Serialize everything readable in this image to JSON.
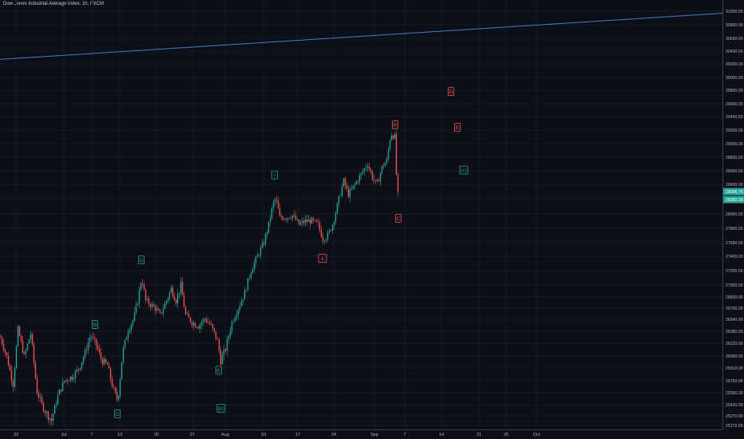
{
  "header": {
    "title": "Dow Jones Industrial Average Index, 1h, FXCM"
  },
  "colors": {
    "background": "#0c0f17",
    "up": "#26a69a",
    "down": "#ef5350",
    "trendline": "#4c78c9",
    "price_label_bg": "#26a69a"
  },
  "chart_data": {
    "type": "candlestick",
    "title": "Dow Jones Industrial Average Index, 1h, FXCM",
    "ylim": [
      25170,
      31000
    ],
    "y_ticks": [
      "31000.00",
      "30800.00",
      "30600.00",
      "30400.00",
      "30200.00",
      "30000.00",
      "29800.00",
      "29600.00",
      "29400.00",
      "29200.00",
      "29000.00",
      "28800.00",
      "28600.00",
      "28400.00",
      "28200.00",
      "28000.00",
      "27800.00",
      "27600.00",
      "27400.00",
      "27200.00",
      "27000.00",
      "26850.00",
      "26700.00",
      "26540.00",
      "26380.00",
      "26220.00",
      "26060.00",
      "25910.00",
      "25750.00",
      "25590.00",
      "25430.00",
      "25270.00",
      "25170.00"
    ],
    "x_ticks": [
      "22",
      "Jul",
      "7",
      "13",
      "20",
      "27",
      "Aug",
      "10",
      "17",
      "24",
      "Sep",
      "7",
      "14",
      "21",
      "25",
      "Oct"
    ],
    "price_labels": [
      "28096.75",
      "28082.39"
    ],
    "series_path": [
      {
        "x": 0,
        "y": 26300
      },
      {
        "x": 8,
        "y": 26050
      },
      {
        "x": 16,
        "y": 25700
      },
      {
        "x": 22,
        "y": 26400
      },
      {
        "x": 30,
        "y": 26050
      },
      {
        "x": 38,
        "y": 26350
      },
      {
        "x": 46,
        "y": 25600
      },
      {
        "x": 55,
        "y": 25350
      },
      {
        "x": 64,
        "y": 25220
      },
      {
        "x": 72,
        "y": 25550
      },
      {
        "x": 80,
        "y": 25750
      },
      {
        "x": 90,
        "y": 25800
      },
      {
        "x": 98,
        "y": 25900
      },
      {
        "x": 106,
        "y": 26100
      },
      {
        "x": 113,
        "y": 26330
      },
      {
        "x": 120,
        "y": 26200
      },
      {
        "x": 127,
        "y": 26000
      },
      {
        "x": 134,
        "y": 25950
      },
      {
        "x": 141,
        "y": 25650
      },
      {
        "x": 147,
        "y": 25480
      },
      {
        "x": 153,
        "y": 26100
      },
      {
        "x": 160,
        "y": 26400
      },
      {
        "x": 167,
        "y": 26550
      },
      {
        "x": 172,
        "y": 26800
      },
      {
        "x": 177,
        "y": 27100
      },
      {
        "x": 182,
        "y": 26800
      },
      {
        "x": 188,
        "y": 26750
      },
      {
        "x": 194,
        "y": 26700
      },
      {
        "x": 200,
        "y": 26600
      },
      {
        "x": 208,
        "y": 26800
      },
      {
        "x": 214,
        "y": 26950
      },
      {
        "x": 220,
        "y": 26800
      },
      {
        "x": 226,
        "y": 27000
      },
      {
        "x": 232,
        "y": 26600
      },
      {
        "x": 240,
        "y": 26500
      },
      {
        "x": 248,
        "y": 26450
      },
      {
        "x": 256,
        "y": 26550
      },
      {
        "x": 264,
        "y": 26450
      },
      {
        "x": 272,
        "y": 26250
      },
      {
        "x": 276,
        "y": 26000
      },
      {
        "x": 282,
        "y": 26150
      },
      {
        "x": 290,
        "y": 26500
      },
      {
        "x": 298,
        "y": 26700
      },
      {
        "x": 306,
        "y": 26900
      },
      {
        "x": 314,
        "y": 27200
      },
      {
        "x": 322,
        "y": 27400
      },
      {
        "x": 330,
        "y": 27600
      },
      {
        "x": 336,
        "y": 27850
      },
      {
        "x": 341,
        "y": 28100
      },
      {
        "x": 345,
        "y": 28200
      },
      {
        "x": 350,
        "y": 27950
      },
      {
        "x": 358,
        "y": 27950
      },
      {
        "x": 366,
        "y": 27980
      },
      {
        "x": 374,
        "y": 27850
      },
      {
        "x": 382,
        "y": 27900
      },
      {
        "x": 390,
        "y": 27900
      },
      {
        "x": 398,
        "y": 27850
      },
      {
        "x": 404,
        "y": 27650
      },
      {
        "x": 410,
        "y": 27700
      },
      {
        "x": 416,
        "y": 27850
      },
      {
        "x": 422,
        "y": 28100
      },
      {
        "x": 430,
        "y": 28450
      },
      {
        "x": 436,
        "y": 28250
      },
      {
        "x": 444,
        "y": 28400
      },
      {
        "x": 452,
        "y": 28550
      },
      {
        "x": 460,
        "y": 28700
      },
      {
        "x": 466,
        "y": 28500
      },
      {
        "x": 472,
        "y": 28400
      },
      {
        "x": 478,
        "y": 28650
      },
      {
        "x": 484,
        "y": 28750
      },
      {
        "x": 489,
        "y": 29150
      },
      {
        "x": 494,
        "y": 29100
      },
      {
        "x": 496,
        "y": 28550
      },
      {
        "x": 499,
        "y": 28090
      }
    ],
    "trendline": {
      "start": {
        "x": 0,
        "y": 30270
      },
      "end": {
        "x": 905,
        "y": 30970
      }
    },
    "labels": [
      {
        "text": "B",
        "x": 119,
        "y": 26470,
        "color": "up"
      },
      {
        "text": "C",
        "x": 147,
        "y": 25300,
        "color": "up"
      },
      {
        "text": "D",
        "x": 177,
        "y": 27350,
        "color": "up"
      },
      {
        "text": "E",
        "x": 274,
        "y": 25880,
        "color": "up"
      },
      {
        "text": "(b)",
        "x": 277,
        "y": 25380,
        "color": "up"
      },
      {
        "text": "i",
        "x": 344,
        "y": 28540,
        "color": "up"
      },
      {
        "text": "ii",
        "x": 404,
        "y": 27370,
        "color": "down"
      },
      {
        "text": "B",
        "x": 495,
        "y": 29280,
        "color": "down"
      },
      {
        "text": "C",
        "x": 499,
        "y": 27940,
        "color": "down"
      },
      {
        "text": "D",
        "x": 565,
        "y": 29780,
        "color": "down"
      },
      {
        "text": "E",
        "x": 573,
        "y": 29240,
        "color": "down"
      },
      {
        "text": "(c)",
        "x": 581,
        "y": 28610,
        "color": "up"
      }
    ]
  }
}
